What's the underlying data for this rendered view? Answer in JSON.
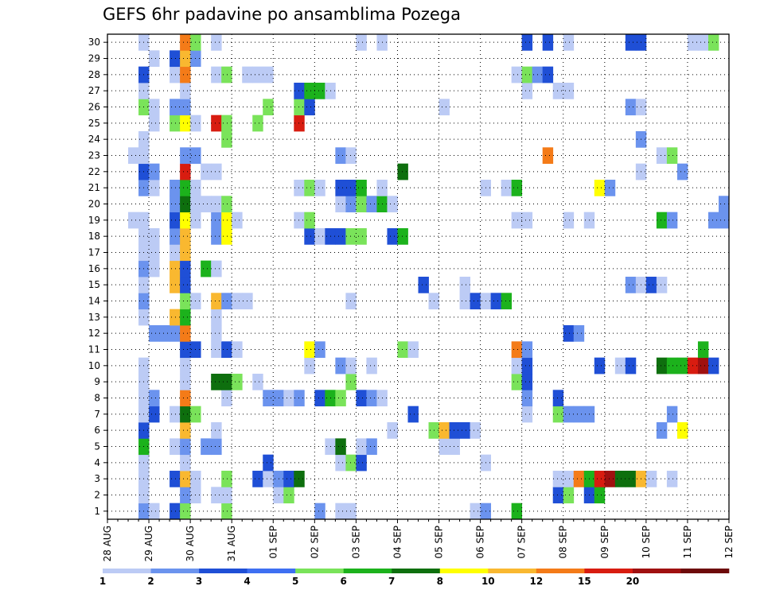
{
  "chart_data": {
    "type": "heatmap",
    "title": "GEFS 6hr padavine po ansamblima Pozega",
    "x_tick_labels": [
      "28 AUG",
      "29 AUG",
      "30 AUG",
      "31 AUG",
      "01 SEP",
      "02 SEP",
      "03 SEP",
      "04 SEP",
      "05 SEP",
      "06 SEP",
      "07 SEP",
      "08 SEP",
      "09 SEP",
      "10 SEP",
      "11 SEP",
      "12 SEP"
    ],
    "y_tick_labels": [
      "1",
      "2",
      "3",
      "4",
      "5",
      "6",
      "7",
      "8",
      "9",
      "10",
      "11",
      "12",
      "13",
      "14",
      "15",
      "16",
      "17",
      "18",
      "19",
      "20",
      "21",
      "22",
      "23",
      "24",
      "25",
      "26",
      "27",
      "28",
      "29",
      "30"
    ],
    "x_steps_per_day": 4,
    "x_range_steps": [
      0,
      60
    ],
    "y_range": [
      0,
      30
    ],
    "grid": true,
    "colorbar": {
      "tick_labels": [
        "1",
        "2",
        "3",
        "4",
        "5",
        "6",
        "7",
        "8",
        "10",
        "12",
        "15",
        "20"
      ],
      "bounds": [
        1,
        2,
        3,
        4,
        5,
        6,
        7,
        8,
        10,
        12,
        15,
        20,
        25
      ],
      "colors": [
        "#bccbf5",
        "#6b93ee",
        "#1f4fd6",
        "#3e6ff2",
        "#7ae35a",
        "#1cb21c",
        "#0e6f0e",
        "#ffff00",
        "#f9b830",
        "#f47b18",
        "#d81c10",
        "#a01010",
        "#6d0a0a"
      ]
    },
    "values": {
      "30": [
        [
          3,
          1
        ],
        [
          7,
          12
        ],
        [
          8,
          5
        ],
        [
          10,
          1
        ],
        [
          24,
          1
        ],
        [
          26,
          1
        ],
        [
          40,
          3
        ],
        [
          42,
          3
        ],
        [
          44,
          1
        ],
        [
          50,
          3
        ],
        [
          51,
          3
        ],
        [
          56,
          1
        ],
        [
          57,
          1
        ],
        [
          58,
          5
        ]
      ],
      "29": [
        [
          4,
          1
        ],
        [
          6,
          3
        ],
        [
          7,
          10
        ],
        [
          8,
          2
        ]
      ],
      "28": [
        [
          3,
          3
        ],
        [
          6,
          1
        ],
        [
          7,
          12
        ],
        [
          10,
          1
        ],
        [
          11,
          5
        ],
        [
          13,
          1
        ],
        [
          14,
          1
        ],
        [
          15,
          1
        ],
        [
          39,
          1
        ],
        [
          40,
          5
        ],
        [
          41,
          2
        ],
        [
          42,
          3
        ]
      ],
      "27": [
        [
          3,
          1
        ],
        [
          7,
          1
        ],
        [
          18,
          3
        ],
        [
          19,
          6
        ],
        [
          20,
          6
        ],
        [
          21,
          1
        ],
        [
          40,
          1
        ],
        [
          43,
          1
        ],
        [
          44,
          1
        ]
      ],
      "26": [
        [
          3,
          5
        ],
        [
          4,
          1
        ],
        [
          6,
          2
        ],
        [
          7,
          2
        ],
        [
          15,
          5
        ],
        [
          18,
          5
        ],
        [
          19,
          3
        ],
        [
          32,
          1
        ],
        [
          50,
          2
        ],
        [
          51,
          1
        ]
      ],
      "25": [
        [
          4,
          1
        ],
        [
          6,
          5
        ],
        [
          7,
          8
        ],
        [
          8,
          1
        ],
        [
          10,
          15
        ],
        [
          11,
          5
        ],
        [
          14,
          5
        ],
        [
          18,
          15
        ]
      ],
      "24": [
        [
          3,
          1
        ],
        [
          11,
          5
        ],
        [
          51,
          2
        ]
      ],
      "23": [
        [
          2,
          1
        ],
        [
          3,
          1
        ],
        [
          7,
          2
        ],
        [
          8,
          2
        ],
        [
          22,
          2
        ],
        [
          23,
          1
        ],
        [
          42,
          12
        ],
        [
          53,
          1
        ],
        [
          54,
          5
        ]
      ],
      "22": [
        [
          3,
          3
        ],
        [
          4,
          2
        ],
        [
          7,
          15
        ],
        [
          9,
          1
        ],
        [
          10,
          1
        ],
        [
          28,
          7
        ],
        [
          51,
          1
        ],
        [
          55,
          2
        ]
      ],
      "21": [
        [
          3,
          2
        ],
        [
          4,
          1
        ],
        [
          6,
          2
        ],
        [
          7,
          6
        ],
        [
          8,
          1
        ],
        [
          18,
          1
        ],
        [
          19,
          5
        ],
        [
          20,
          1
        ],
        [
          22,
          3
        ],
        [
          23,
          3
        ],
        [
          24,
          6
        ],
        [
          26,
          1
        ],
        [
          36,
          1
        ],
        [
          38,
          1
        ],
        [
          39,
          6
        ],
        [
          47,
          8
        ],
        [
          48,
          2
        ]
      ],
      "20": [
        [
          6,
          2
        ],
        [
          7,
          7
        ],
        [
          8,
          1
        ],
        [
          9,
          1
        ],
        [
          10,
          1
        ],
        [
          11,
          5
        ],
        [
          22,
          1
        ],
        [
          23,
          2
        ],
        [
          24,
          5
        ],
        [
          25,
          2
        ],
        [
          26,
          6
        ],
        [
          27,
          1
        ],
        [
          59,
          2
        ]
      ],
      "19": [
        [
          2,
          1
        ],
        [
          3,
          1
        ],
        [
          6,
          3
        ],
        [
          7,
          8
        ],
        [
          8,
          1
        ],
        [
          10,
          2
        ],
        [
          11,
          8
        ],
        [
          12,
          1
        ],
        [
          18,
          1
        ],
        [
          19,
          5
        ],
        [
          39,
          1
        ],
        [
          40,
          1
        ],
        [
          44,
          1
        ],
        [
          46,
          1
        ],
        [
          53,
          6
        ],
        [
          54,
          2
        ],
        [
          58,
          2
        ],
        [
          59,
          2
        ]
      ],
      "18": [
        [
          3,
          1
        ],
        [
          4,
          1
        ],
        [
          6,
          2
        ],
        [
          7,
          10
        ],
        [
          10,
          2
        ],
        [
          11,
          8
        ],
        [
          19,
          3
        ],
        [
          20,
          1
        ],
        [
          21,
          3
        ],
        [
          22,
          3
        ],
        [
          23,
          5
        ],
        [
          24,
          5
        ],
        [
          27,
          3
        ],
        [
          28,
          6
        ]
      ],
      "17": [
        [
          3,
          1
        ],
        [
          4,
          1
        ],
        [
          6,
          1
        ],
        [
          7,
          10
        ]
      ],
      "16": [
        [
          3,
          2
        ],
        [
          4,
          1
        ],
        [
          6,
          10
        ],
        [
          7,
          3
        ],
        [
          9,
          6
        ],
        [
          10,
          1
        ]
      ],
      "15": [
        [
          3,
          1
        ],
        [
          6,
          10
        ],
        [
          7,
          3
        ],
        [
          30,
          3
        ],
        [
          34,
          1
        ],
        [
          50,
          2
        ],
        [
          51,
          1
        ],
        [
          52,
          3
        ],
        [
          53,
          1
        ]
      ],
      "14": [
        [
          3,
          2
        ],
        [
          7,
          5
        ],
        [
          8,
          1
        ],
        [
          10,
          10
        ],
        [
          11,
          2
        ],
        [
          12,
          1
        ],
        [
          13,
          1
        ],
        [
          23,
          1
        ],
        [
          31,
          1
        ],
        [
          34,
          1
        ],
        [
          35,
          3
        ],
        [
          36,
          1
        ],
        [
          37,
          3
        ],
        [
          38,
          6
        ]
      ],
      "13": [
        [
          3,
          1
        ],
        [
          6,
          10
        ],
        [
          7,
          6
        ],
        [
          10,
          1
        ]
      ],
      "12": [
        [
          4,
          2
        ],
        [
          5,
          2
        ],
        [
          6,
          2
        ],
        [
          7,
          12
        ],
        [
          10,
          1
        ],
        [
          44,
          3
        ],
        [
          45,
          2
        ]
      ],
      "11": [
        [
          7,
          3
        ],
        [
          8,
          3
        ],
        [
          10,
          1
        ],
        [
          11,
          3
        ],
        [
          12,
          1
        ],
        [
          19,
          8
        ],
        [
          20,
          2
        ],
        [
          28,
          5
        ],
        [
          29,
          1
        ],
        [
          39,
          12
        ],
        [
          40,
          2
        ],
        [
          57,
          6
        ]
      ],
      "10": [
        [
          3,
          1
        ],
        [
          7,
          1
        ],
        [
          19,
          1
        ],
        [
          22,
          2
        ],
        [
          23,
          1
        ],
        [
          25,
          1
        ],
        [
          39,
          1
        ],
        [
          40,
          3
        ],
        [
          47,
          3
        ],
        [
          49,
          1
        ],
        [
          50,
          3
        ],
        [
          53,
          7
        ],
        [
          54,
          6
        ],
        [
          55,
          6
        ],
        [
          56,
          15
        ],
        [
          57,
          20
        ],
        [
          58,
          3
        ]
      ],
      "9": [
        [
          3,
          1
        ],
        [
          7,
          1
        ],
        [
          10,
          7
        ],
        [
          11,
          7
        ],
        [
          12,
          5
        ],
        [
          14,
          1
        ],
        [
          23,
          5
        ],
        [
          39,
          5
        ],
        [
          40,
          3
        ]
      ],
      "8": [
        [
          3,
          1
        ],
        [
          4,
          2
        ],
        [
          7,
          12
        ],
        [
          11,
          1
        ],
        [
          15,
          2
        ],
        [
          16,
          2
        ],
        [
          17,
          1
        ],
        [
          18,
          2
        ],
        [
          20,
          3
        ],
        [
          21,
          6
        ],
        [
          22,
          5
        ],
        [
          24,
          3
        ],
        [
          25,
          2
        ],
        [
          26,
          1
        ],
        [
          40,
          2
        ],
        [
          43,
          3
        ]
      ],
      "7": [
        [
          3,
          1
        ],
        [
          4,
          3
        ],
        [
          6,
          1
        ],
        [
          7,
          7
        ],
        [
          8,
          5
        ],
        [
          29,
          3
        ],
        [
          40,
          1
        ],
        [
          43,
          5
        ],
        [
          44,
          2
        ],
        [
          45,
          2
        ],
        [
          46,
          2
        ],
        [
          54,
          2
        ]
      ],
      "6": [
        [
          3,
          3
        ],
        [
          7,
          10
        ],
        [
          10,
          1
        ],
        [
          27,
          1
        ],
        [
          31,
          5
        ],
        [
          32,
          10
        ],
        [
          33,
          3
        ],
        [
          34,
          3
        ],
        [
          35,
          1
        ],
        [
          53,
          2
        ],
        [
          55,
          8
        ]
      ],
      "5": [
        [
          3,
          6
        ],
        [
          6,
          1
        ],
        [
          7,
          2
        ],
        [
          9,
          2
        ],
        [
          10,
          2
        ],
        [
          21,
          1
        ],
        [
          22,
          7
        ],
        [
          24,
          1
        ],
        [
          25,
          2
        ],
        [
          32,
          1
        ],
        [
          33,
          1
        ]
      ],
      "4": [
        [
          3,
          1
        ],
        [
          7,
          1
        ],
        [
          15,
          3
        ],
        [
          22,
          1
        ],
        [
          23,
          5
        ],
        [
          24,
          3
        ],
        [
          36,
          1
        ]
      ],
      "3": [
        [
          3,
          1
        ],
        [
          6,
          3
        ],
        [
          7,
          10
        ],
        [
          8,
          1
        ],
        [
          11,
          5
        ],
        [
          14,
          3
        ],
        [
          15,
          1
        ],
        [
          16,
          2
        ],
        [
          17,
          3
        ],
        [
          18,
          7
        ],
        [
          43,
          1
        ],
        [
          44,
          1
        ],
        [
          45,
          12
        ],
        [
          46,
          6
        ],
        [
          47,
          15
        ],
        [
          48,
          20
        ],
        [
          49,
          7
        ],
        [
          50,
          7
        ],
        [
          51,
          10
        ],
        [
          52,
          1
        ],
        [
          54,
          1
        ]
      ],
      "2": [
        [
          3,
          1
        ],
        [
          7,
          2
        ],
        [
          8,
          1
        ],
        [
          10,
          1
        ],
        [
          11,
          1
        ],
        [
          16,
          1
        ],
        [
          17,
          5
        ],
        [
          43,
          3
        ],
        [
          44,
          5
        ],
        [
          46,
          3
        ],
        [
          47,
          6
        ]
      ],
      "1": [
        [
          3,
          2
        ],
        [
          4,
          1
        ],
        [
          6,
          3
        ],
        [
          7,
          5
        ],
        [
          11,
          5
        ],
        [
          20,
          2
        ],
        [
          22,
          1
        ],
        [
          23,
          1
        ],
        [
          35,
          1
        ],
        [
          36,
          2
        ],
        [
          39,
          6
        ]
      ]
    }
  }
}
